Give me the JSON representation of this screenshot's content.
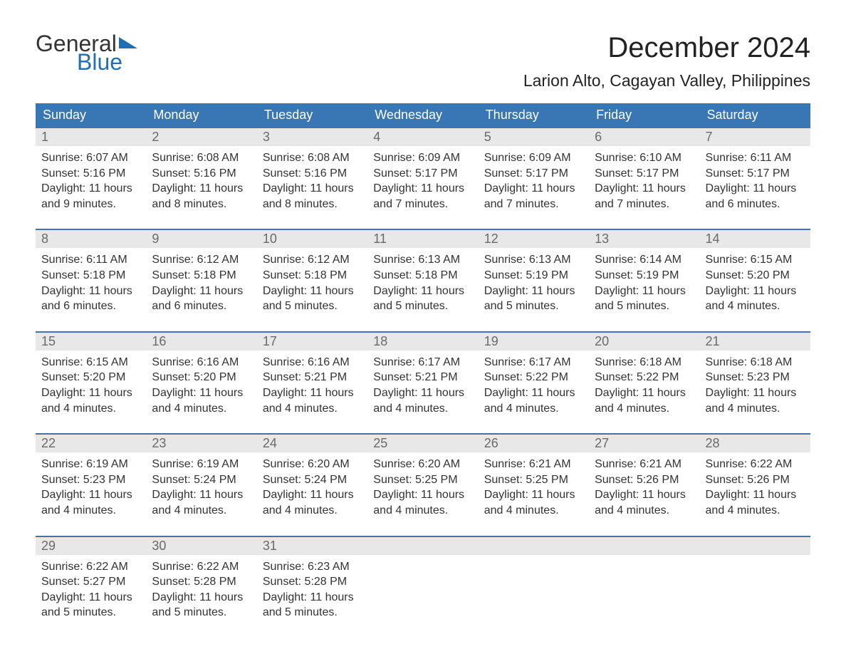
{
  "logo": {
    "top": "General",
    "bottom": "Blue"
  },
  "title": "December 2024",
  "location": "Larion Alto, Cagayan Valley, Philippines",
  "colors": {
    "header_bg": "#3877b4",
    "header_text": "#ffffff",
    "row_border": "#3877b4",
    "daynum_bg": "#e8e8e8",
    "daynum_text": "#6a6a6a",
    "body_text": "#333333",
    "accent_blue": "#1f6fb2",
    "page_bg": "#ffffff"
  },
  "typography": {
    "title_fontsize": 40,
    "location_fontsize": 23,
    "weekday_fontsize": 18,
    "daynum_fontsize": 18,
    "body_fontsize": 16,
    "font_family": "Arial"
  },
  "weekdays": [
    "Sunday",
    "Monday",
    "Tuesday",
    "Wednesday",
    "Thursday",
    "Friday",
    "Saturday"
  ],
  "labels": {
    "sunrise": "Sunrise:",
    "sunset": "Sunset:",
    "daylight": "Daylight:"
  },
  "weeks": [
    [
      {
        "n": "1",
        "sr": "6:07 AM",
        "ss": "5:16 PM",
        "dl": "11 hours and 9 minutes."
      },
      {
        "n": "2",
        "sr": "6:08 AM",
        "ss": "5:16 PM",
        "dl": "11 hours and 8 minutes."
      },
      {
        "n": "3",
        "sr": "6:08 AM",
        "ss": "5:16 PM",
        "dl": "11 hours and 8 minutes."
      },
      {
        "n": "4",
        "sr": "6:09 AM",
        "ss": "5:17 PM",
        "dl": "11 hours and 7 minutes."
      },
      {
        "n": "5",
        "sr": "6:09 AM",
        "ss": "5:17 PM",
        "dl": "11 hours and 7 minutes."
      },
      {
        "n": "6",
        "sr": "6:10 AM",
        "ss": "5:17 PM",
        "dl": "11 hours and 7 minutes."
      },
      {
        "n": "7",
        "sr": "6:11 AM",
        "ss": "5:17 PM",
        "dl": "11 hours and 6 minutes."
      }
    ],
    [
      {
        "n": "8",
        "sr": "6:11 AM",
        "ss": "5:18 PM",
        "dl": "11 hours and 6 minutes."
      },
      {
        "n": "9",
        "sr": "6:12 AM",
        "ss": "5:18 PM",
        "dl": "11 hours and 6 minutes."
      },
      {
        "n": "10",
        "sr": "6:12 AM",
        "ss": "5:18 PM",
        "dl": "11 hours and 5 minutes."
      },
      {
        "n": "11",
        "sr": "6:13 AM",
        "ss": "5:18 PM",
        "dl": "11 hours and 5 minutes."
      },
      {
        "n": "12",
        "sr": "6:13 AM",
        "ss": "5:19 PM",
        "dl": "11 hours and 5 minutes."
      },
      {
        "n": "13",
        "sr": "6:14 AM",
        "ss": "5:19 PM",
        "dl": "11 hours and 5 minutes."
      },
      {
        "n": "14",
        "sr": "6:15 AM",
        "ss": "5:20 PM",
        "dl": "11 hours and 4 minutes."
      }
    ],
    [
      {
        "n": "15",
        "sr": "6:15 AM",
        "ss": "5:20 PM",
        "dl": "11 hours and 4 minutes."
      },
      {
        "n": "16",
        "sr": "6:16 AM",
        "ss": "5:20 PM",
        "dl": "11 hours and 4 minutes."
      },
      {
        "n": "17",
        "sr": "6:16 AM",
        "ss": "5:21 PM",
        "dl": "11 hours and 4 minutes."
      },
      {
        "n": "18",
        "sr": "6:17 AM",
        "ss": "5:21 PM",
        "dl": "11 hours and 4 minutes."
      },
      {
        "n": "19",
        "sr": "6:17 AM",
        "ss": "5:22 PM",
        "dl": "11 hours and 4 minutes."
      },
      {
        "n": "20",
        "sr": "6:18 AM",
        "ss": "5:22 PM",
        "dl": "11 hours and 4 minutes."
      },
      {
        "n": "21",
        "sr": "6:18 AM",
        "ss": "5:23 PM",
        "dl": "11 hours and 4 minutes."
      }
    ],
    [
      {
        "n": "22",
        "sr": "6:19 AM",
        "ss": "5:23 PM",
        "dl": "11 hours and 4 minutes."
      },
      {
        "n": "23",
        "sr": "6:19 AM",
        "ss": "5:24 PM",
        "dl": "11 hours and 4 minutes."
      },
      {
        "n": "24",
        "sr": "6:20 AM",
        "ss": "5:24 PM",
        "dl": "11 hours and 4 minutes."
      },
      {
        "n": "25",
        "sr": "6:20 AM",
        "ss": "5:25 PM",
        "dl": "11 hours and 4 minutes."
      },
      {
        "n": "26",
        "sr": "6:21 AM",
        "ss": "5:25 PM",
        "dl": "11 hours and 4 minutes."
      },
      {
        "n": "27",
        "sr": "6:21 AM",
        "ss": "5:26 PM",
        "dl": "11 hours and 4 minutes."
      },
      {
        "n": "28",
        "sr": "6:22 AM",
        "ss": "5:26 PM",
        "dl": "11 hours and 4 minutes."
      }
    ],
    [
      {
        "n": "29",
        "sr": "6:22 AM",
        "ss": "5:27 PM",
        "dl": "11 hours and 5 minutes."
      },
      {
        "n": "30",
        "sr": "6:22 AM",
        "ss": "5:28 PM",
        "dl": "11 hours and 5 minutes."
      },
      {
        "n": "31",
        "sr": "6:23 AM",
        "ss": "5:28 PM",
        "dl": "11 hours and 5 minutes."
      },
      null,
      null,
      null,
      null
    ]
  ]
}
